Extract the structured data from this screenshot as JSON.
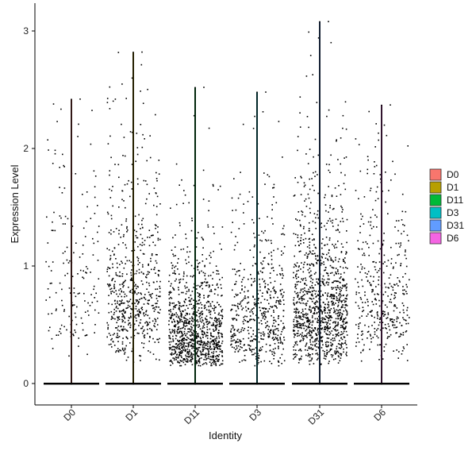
{
  "chart_data": {
    "type": "violin",
    "title": "",
    "xlabel": "Identity",
    "ylabel": "Expression Level",
    "ylim": [
      -0.18,
      3.2
    ],
    "yticks": [
      0,
      1,
      2,
      3
    ],
    "categories": [
      "D0",
      "D1",
      "D11",
      "D3",
      "D31",
      "D6"
    ],
    "legend_position": "right",
    "grid": false,
    "series": [
      {
        "name": "D0",
        "color": "#F8766D",
        "max": 2.42,
        "zero_fraction": 0.8,
        "nonzero_points": 170,
        "nonzero_median": 0.9
      },
      {
        "name": "D1",
        "color": "#B79F00",
        "max": 2.82,
        "zero_fraction": 0.55,
        "nonzero_points": 620,
        "nonzero_median": 0.8
      },
      {
        "name": "D11",
        "color": "#00BA38",
        "max": 2.52,
        "zero_fraction": 0.45,
        "nonzero_points": 1050,
        "nonzero_median": 0.45
      },
      {
        "name": "D3",
        "color": "#00BFC4",
        "max": 2.48,
        "zero_fraction": 0.65,
        "nonzero_points": 560,
        "nonzero_median": 0.6
      },
      {
        "name": "D31",
        "color": "#619CFF",
        "max": 3.08,
        "zero_fraction": 0.4,
        "nonzero_points": 1150,
        "nonzero_median": 0.65
      },
      {
        "name": "D6",
        "color": "#F564E3",
        "max": 2.37,
        "zero_fraction": 0.65,
        "nonzero_points": 400,
        "nonzero_median": 0.75
      }
    ]
  }
}
